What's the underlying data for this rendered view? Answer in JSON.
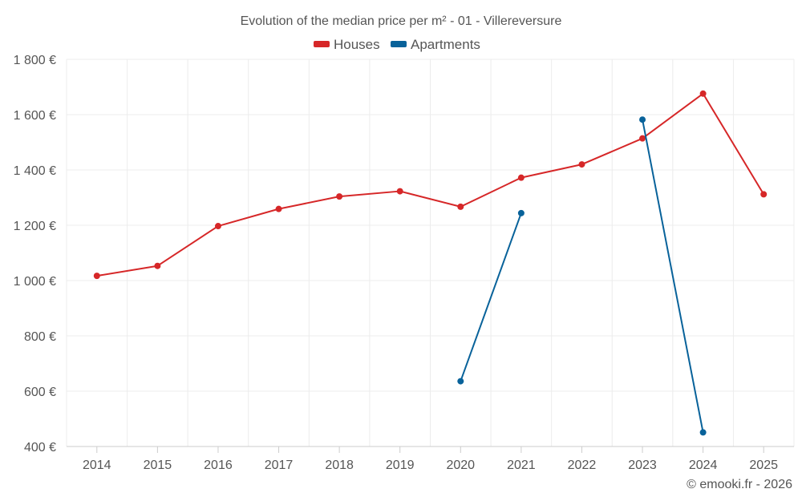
{
  "chart_data": {
    "type": "line",
    "title": "Evolution of the median price per m² - 01 - Villereversure",
    "xlabel": "",
    "ylabel": "",
    "categories": [
      "2014",
      "2015",
      "2016",
      "2017",
      "2018",
      "2019",
      "2020",
      "2021",
      "2022",
      "2023",
      "2024",
      "2025"
    ],
    "ylim": [
      400,
      1800
    ],
    "yticks": [
      400,
      600,
      800,
      1000,
      1200,
      1400,
      1600,
      1800
    ],
    "ytick_labels": [
      "400 €",
      "600 €",
      "800 €",
      "1 000 €",
      "1 200 €",
      "1 400 €",
      "1 600 €",
      "1 800 €"
    ],
    "grid": true,
    "legend_position": "top-center",
    "series": [
      {
        "name": "Houses",
        "color": "#d62728",
        "values": [
          1017,
          1053,
          1197,
          1259,
          1304,
          1323,
          1267,
          1372,
          1420,
          1514,
          1676,
          1312
        ]
      },
      {
        "name": "Apartments",
        "color": "#08629a",
        "values": [
          null,
          null,
          null,
          null,
          null,
          null,
          636,
          1244,
          null,
          1582,
          451,
          null
        ]
      }
    ],
    "credit": "© emooki.fr - 2026"
  }
}
